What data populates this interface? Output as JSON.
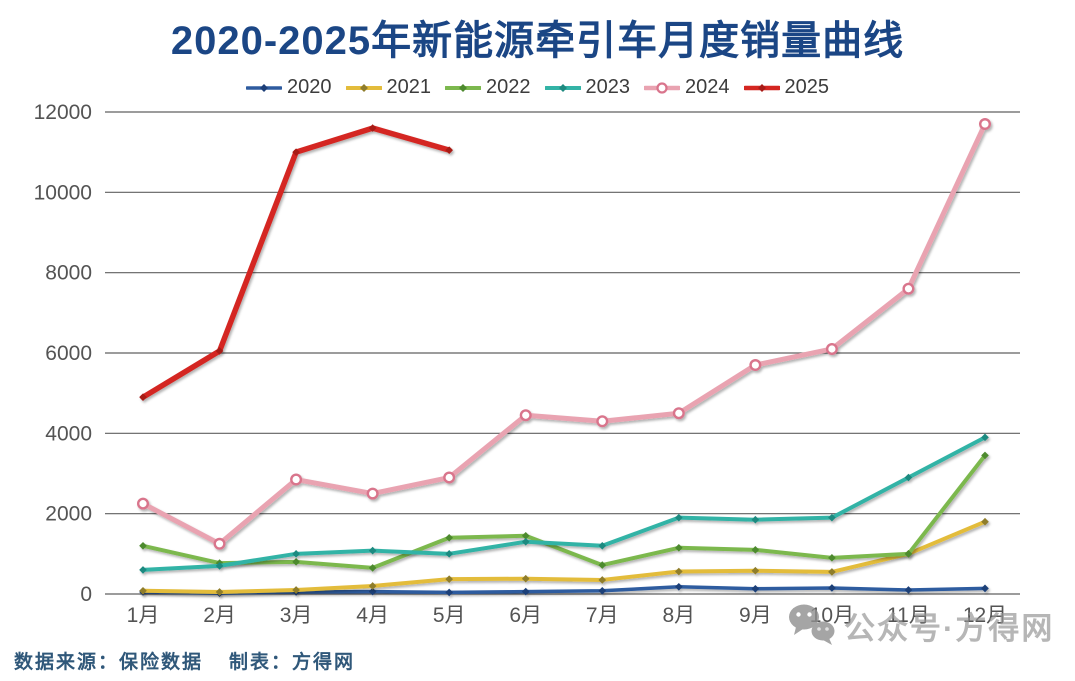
{
  "title": "2020-2025年新能源牵引车月度销量曲线",
  "footer": {
    "source": "数据来源：保险数据",
    "maker": "制表：方得网"
  },
  "watermark": {
    "icon": "wechat-icon",
    "text": "公众号·方得网"
  },
  "colors": {
    "title": "#1b4685",
    "tick_label": "#545454",
    "gridline": "#606060",
    "footer_text": "#30587a",
    "watermark": "#949494"
  },
  "chart_data": {
    "type": "line",
    "title": "2020-2025年新能源牵引车月度销量曲线",
    "categories": [
      "1月",
      "2月",
      "3月",
      "4月",
      "5月",
      "6月",
      "7月",
      "8月",
      "9月",
      "10月",
      "11月",
      "12月"
    ],
    "ylim": [
      0,
      12000
    ],
    "yticks": [
      0,
      2000,
      4000,
      6000,
      8000,
      10000,
      12000
    ],
    "grid": "horizontal",
    "legend_position": "top",
    "series": [
      {
        "name": "2020",
        "color": "#2e5b9f",
        "marker_color": "#1d3f78",
        "marker": "diamond",
        "width": 3.5,
        "values": [
          50,
          20,
          50,
          60,
          40,
          60,
          80,
          180,
          130,
          150,
          100,
          140
        ]
      },
      {
        "name": "2021",
        "color": "#e3bc3b",
        "marker_color": "#8f7d2c",
        "marker": "diamond",
        "width": 4,
        "values": [
          80,
          50,
          100,
          200,
          370,
          380,
          350,
          560,
          580,
          550,
          1000,
          1800
        ]
      },
      {
        "name": "2022",
        "color": "#7cb84e",
        "marker_color": "#4e8a2f",
        "marker": "diamond",
        "width": 4,
        "values": [
          1200,
          770,
          800,
          650,
          1400,
          1450,
          720,
          1150,
          1100,
          900,
          1000,
          3450
        ]
      },
      {
        "name": "2023",
        "color": "#33b3a6",
        "marker_color": "#1f8a80",
        "marker": "diamond",
        "width": 4,
        "values": [
          600,
          700,
          1000,
          1080,
          1000,
          1300,
          1200,
          1900,
          1850,
          1900,
          2900,
          3900
        ]
      },
      {
        "name": "2024",
        "color": "#e9a3b1",
        "marker_color": "#d9748c",
        "marker": "circle-open",
        "width": 5,
        "values": [
          2250,
          1250,
          2850,
          2500,
          2900,
          4450,
          4300,
          4500,
          5700,
          6100,
          7600,
          11700
        ]
      },
      {
        "name": "2025",
        "color": "#d42621",
        "marker_color": "#a81b17",
        "marker": "diamond",
        "width": 5.5,
        "values": [
          4900,
          6050,
          11000,
          11600,
          11050
        ]
      }
    ]
  }
}
